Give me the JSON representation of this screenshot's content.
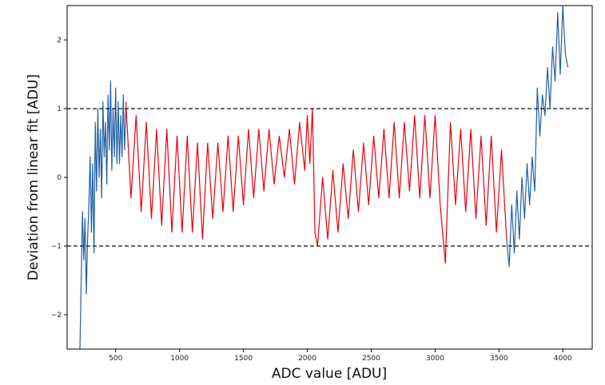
{
  "chart_data": {
    "type": "line",
    "title": "",
    "xlabel": "ADC value [ADU]",
    "ylabel": "Deviation from linear fit [ADU]",
    "xlim": [
      120,
      4230
    ],
    "ylim": [
      -2.5,
      2.5
    ],
    "x_ticks": [
      500,
      1000,
      1500,
      2000,
      2500,
      3000,
      3500,
      4000
    ],
    "y_ticks": [
      -2,
      -1,
      0,
      1,
      2
    ],
    "grid": false,
    "legend": "none",
    "colors": {
      "within_band": "#e8000b",
      "outside_band": "#1f5fa6",
      "reference": "#111111"
    },
    "reference_lines": [
      {
        "y": 1,
        "style": "dashed"
      },
      {
        "y": -1,
        "style": "dashed"
      }
    ],
    "series": [
      {
        "color": "#1f5fa6",
        "x": [
          220,
          230,
          240,
          250,
          260,
          270,
          280,
          290,
          300,
          310,
          320,
          330,
          340,
          350,
          360,
          370,
          380,
          390,
          400,
          410,
          420,
          430,
          440,
          450,
          460,
          470,
          480,
          490,
          500,
          510,
          520,
          530,
          540,
          550,
          560,
          570,
          580
        ],
        "y": [
          -2.5,
          -1.5,
          -0.5,
          -1.2,
          -0.6,
          -1.7,
          -0.9,
          -0.4,
          0.3,
          -0.8,
          0.2,
          -1.1,
          0.8,
          -0.2,
          1.0,
          0.0,
          0.7,
          -0.3,
          1.1,
          0.3,
          0.8,
          -0.1,
          1.2,
          0.4,
          1.4,
          0.1,
          1.0,
          0.3,
          1.3,
          0.2,
          1.1,
          0.2,
          0.9,
          0.3,
          1.2,
          0.4,
          1.0
        ]
      },
      {
        "color": "#e8000b",
        "x": [
          580,
          620,
          660,
          700,
          740,
          780,
          820,
          860,
          900,
          940,
          980,
          1020,
          1060,
          1100,
          1140,
          1180,
          1220,
          1260,
          1300,
          1340,
          1380,
          1420,
          1460,
          1500,
          1540,
          1580,
          1620,
          1660,
          1700,
          1740,
          1780,
          1820,
          1860,
          1900,
          1940,
          1980,
          2000,
          2020,
          2040,
          2060,
          2080
        ],
        "y": [
          1.1,
          -0.3,
          0.9,
          -0.5,
          0.8,
          -0.6,
          0.7,
          -0.7,
          0.7,
          -0.8,
          0.6,
          -0.8,
          0.6,
          -0.8,
          0.5,
          -0.9,
          0.5,
          -0.6,
          0.5,
          -0.5,
          0.6,
          -0.5,
          0.6,
          -0.4,
          0.7,
          -0.3,
          0.7,
          -0.2,
          0.7,
          -0.1,
          0.6,
          0.0,
          0.7,
          -0.1,
          0.8,
          0.1,
          0.9,
          0.2,
          1.0,
          -0.8,
          -1.0
        ]
      },
      {
        "color": "#e8000b",
        "x": [
          2080,
          2120,
          2160,
          2200,
          2240,
          2280,
          2320,
          2360,
          2400,
          2440,
          2480,
          2520,
          2560,
          2600,
          2640,
          2680,
          2720,
          2760,
          2800,
          2840,
          2880,
          2920,
          2960,
          3000,
          3040,
          3080,
          3120,
          3160,
          3200,
          3240,
          3280,
          3320,
          3360,
          3400,
          3440,
          3480,
          3520,
          3560
        ],
        "y": [
          -1.0,
          0.0,
          -0.9,
          0.1,
          -0.8,
          0.2,
          -0.6,
          0.4,
          -0.5,
          0.5,
          -0.4,
          0.6,
          -0.3,
          0.7,
          -0.3,
          0.8,
          -0.3,
          0.8,
          -0.2,
          0.9,
          -0.3,
          0.9,
          -0.3,
          0.9,
          -0.4,
          -1.25,
          0.8,
          -0.4,
          0.7,
          -0.5,
          0.7,
          -0.6,
          0.6,
          -0.7,
          0.6,
          -0.8,
          0.4,
          -0.9
        ]
      },
      {
        "color": "#1f5fa6",
        "x": [
          3560,
          3580,
          3600,
          3620,
          3640,
          3660,
          3680,
          3700,
          3720,
          3740,
          3760,
          3780,
          3800,
          3820,
          3840,
          3860,
          3880,
          3900,
          3920,
          3940,
          3960,
          3980,
          4000,
          4020,
          4040
        ],
        "y": [
          -0.9,
          -1.3,
          -0.4,
          -1.1,
          -0.2,
          -0.9,
          0.0,
          -0.6,
          0.2,
          -0.4,
          0.3,
          -0.2,
          1.3,
          0.6,
          1.2,
          0.9,
          1.6,
          1.0,
          1.9,
          1.4,
          2.4,
          1.5,
          2.5,
          1.8,
          1.6
        ]
      }
    ]
  }
}
